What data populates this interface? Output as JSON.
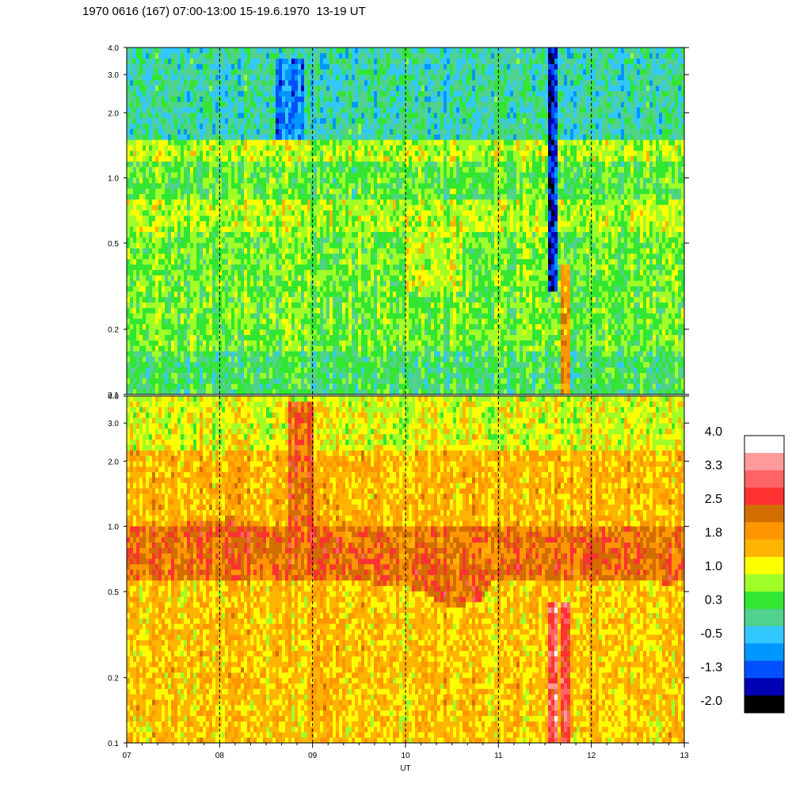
{
  "title": "1970 0616 (167) 07:00-13:00 15-19.6.1970  13-19 UT",
  "chart_data": {
    "type": "heatmap",
    "title": "1970 0616 (167) 07:00-13:00 15-19.6.1970  13-19 UT",
    "xlabel": "UT",
    "x_range": [
      7,
      13
    ],
    "x_ticks": [
      "07",
      "08",
      "09",
      "10",
      "11",
      "12",
      "13"
    ],
    "y_scale": "log",
    "y_range": [
      0.1,
      4.0
    ],
    "y_ticks": [
      0.1,
      0.2,
      0.5,
      1.0,
      2.0,
      3.0,
      4.0
    ],
    "y_tick_labels": [
      "0.1",
      "0.2",
      "0.5",
      "1.0",
      "2.0",
      "3.0",
      "4.0"
    ],
    "hour_guides": [
      8,
      9,
      10,
      11,
      12
    ],
    "panels": [
      {
        "name": "upper",
        "dominant_level": "0.3 to 1.0",
        "bands": [
          {
            "y_low": 0.1,
            "y_high": 0.16,
            "level": 0.3
          },
          {
            "y_low": 0.16,
            "y_high": 0.55,
            "level": 0.6
          },
          {
            "y_low": 0.55,
            "y_high": 0.8,
            "level": 0.9
          },
          {
            "y_low": 0.8,
            "y_high": 1.2,
            "level": 0.5
          },
          {
            "y_low": 1.2,
            "y_high": 1.5,
            "level": 0.9
          },
          {
            "y_low": 1.5,
            "y_high": 4.0,
            "level": 0.0
          }
        ],
        "features": [
          {
            "x_start": 11.52,
            "x_end": 11.62,
            "y_low": 0.3,
            "y_high": 4.0,
            "level": -1.3
          },
          {
            "x_start": 11.68,
            "x_end": 11.78,
            "y_low": 0.1,
            "y_high": 0.4,
            "level": 2.0
          },
          {
            "x_start": 8.6,
            "x_end": 8.9,
            "y_low": 1.5,
            "y_high": 3.5,
            "level": -0.8
          },
          {
            "x_start": 10.0,
            "x_end": 10.6,
            "y_low": 0.3,
            "y_high": 0.6,
            "level": 1.0
          }
        ]
      },
      {
        "name": "lower",
        "dominant_level": "1.3 to 2.2",
        "bands": [
          {
            "y_low": 0.1,
            "y_high": 0.55,
            "level": 1.5
          },
          {
            "y_low": 0.55,
            "y_high": 1.0,
            "level": 2.2
          },
          {
            "y_low": 1.0,
            "y_high": 2.2,
            "level": 1.6
          },
          {
            "y_low": 2.2,
            "y_high": 4.0,
            "level": 1.1
          }
        ],
        "ridge": [
          {
            "x": 7.0,
            "y": 0.82
          },
          {
            "x": 8.0,
            "y": 0.85
          },
          {
            "x": 8.8,
            "y": 0.8
          },
          {
            "x": 9.2,
            "y": 0.7
          },
          {
            "x": 10.0,
            "y": 0.65
          },
          {
            "x": 10.5,
            "y": 0.52
          },
          {
            "x": 10.8,
            "y": 0.55
          },
          {
            "x": 11.0,
            "y": 0.75
          },
          {
            "x": 12.0,
            "y": 0.75
          },
          {
            "x": 12.6,
            "y": 0.8
          },
          {
            "x": 12.8,
            "y": 0.65
          },
          {
            "x": 13.0,
            "y": 0.7
          }
        ],
        "features": [
          {
            "x_start": 11.52,
            "x_end": 11.62,
            "y_low": 0.1,
            "y_high": 0.45,
            "level": 3.0
          },
          {
            "x_start": 11.68,
            "x_end": 11.78,
            "y_low": 0.1,
            "y_high": 0.45,
            "level": 3.0
          },
          {
            "x_start": 8.75,
            "x_end": 9.0,
            "y_low": 0.7,
            "y_high": 3.8,
            "level": 2.4
          }
        ]
      }
    ],
    "colorbar": {
      "labels": [
        "4.0",
        "3.3",
        "2.5",
        "1.8",
        "1.0",
        "0.3",
        "-0.5",
        "-1.3",
        "-2.0"
      ],
      "colors": [
        "#ffffff",
        "#ff9a9a",
        "#ff6464",
        "#ff3232",
        "#d26e00",
        "#ff9600",
        "#ffb400",
        "#ffff00",
        "#a0ff28",
        "#32e632",
        "#50d28c",
        "#32c8ff",
        "#0096ff",
        "#0050ff",
        "#0000b4",
        "#000000"
      ],
      "range": [
        -2.0,
        4.0
      ]
    }
  }
}
